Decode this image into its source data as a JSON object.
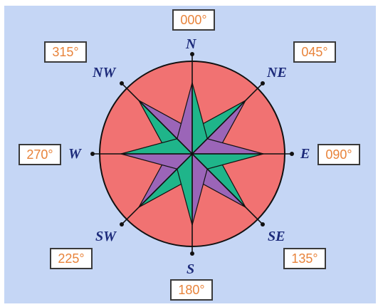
{
  "compass": {
    "colors": {
      "background": "#c5d6f5",
      "circle_fill": "#f17272",
      "star_green": "#1fb58a",
      "star_purple": "#9b65b8",
      "lines": "#111111",
      "label_text": "#1c2a7a",
      "bearing_text": "#e8833a"
    },
    "labels": {
      "n": "N",
      "ne": "NE",
      "e": "E",
      "se": "SE",
      "s": "S",
      "sw": "SW",
      "w": "W",
      "nw": "NW"
    },
    "bearings": {
      "n": "000°",
      "ne": "045°",
      "e": "090°",
      "se": "135°",
      "s": "180°",
      "sw": "225°",
      "w": "270°",
      "nw": "315°"
    }
  }
}
